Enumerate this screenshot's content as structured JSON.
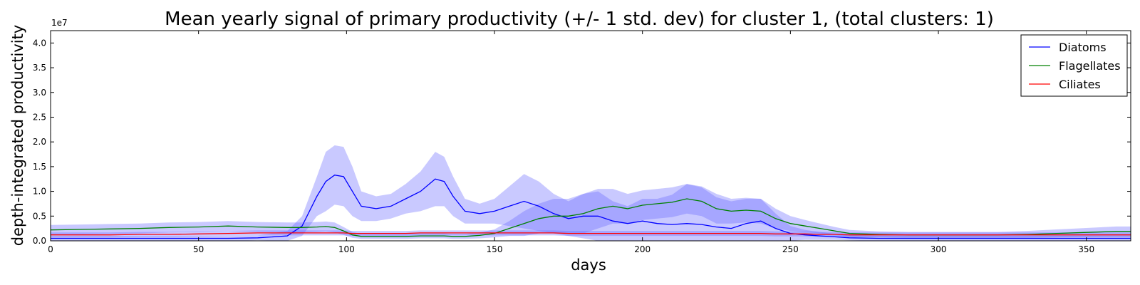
{
  "chart_data": {
    "type": "line",
    "title": "Mean yearly signal of primary productivity (+/- 1 std. dev) for cluster 1, (total clusters: 1)",
    "xlabel": "days",
    "ylabel": "depth-integrated productivity",
    "y_offset_label": "1e7",
    "xlim": [
      0,
      365
    ],
    "ylim": [
      0,
      4.25
    ],
    "xticks": [
      0,
      50,
      100,
      150,
      200,
      250,
      300,
      350
    ],
    "xtick_labels": [
      "0",
      "50",
      "100",
      "150",
      "200",
      "250",
      "300",
      "350"
    ],
    "yticks": [
      0,
      0.5,
      1.0,
      1.5,
      2.0,
      2.5,
      3.0,
      3.5,
      4.0
    ],
    "ytick_labels": [
      "0.0",
      "0.5",
      "1.0",
      "1.5",
      "2.0",
      "2.5",
      "3.0",
      "3.5",
      "4.0"
    ],
    "legend_position": "top-right",
    "x": [
      0,
      10,
      20,
      30,
      40,
      50,
      60,
      70,
      80,
      85,
      90,
      93,
      96,
      99,
      102,
      105,
      110,
      115,
      120,
      125,
      130,
      133,
      136,
      140,
      145,
      150,
      155,
      160,
      165,
      170,
      175,
      180,
      185,
      190,
      195,
      200,
      205,
      210,
      215,
      220,
      225,
      230,
      235,
      240,
      245,
      250,
      255,
      260,
      265,
      270,
      280,
      290,
      300,
      310,
      320,
      330,
      340,
      350,
      360,
      365
    ],
    "series": [
      {
        "name": "Diatoms",
        "color": "#0000ff",
        "band_color": "#6464ff",
        "values": [
          0.05,
          0.05,
          0.05,
          0.05,
          0.05,
          0.05,
          0.05,
          0.06,
          0.1,
          0.3,
          0.9,
          1.2,
          1.33,
          1.3,
          1.0,
          0.7,
          0.65,
          0.7,
          0.85,
          1.0,
          1.25,
          1.2,
          0.9,
          0.6,
          0.55,
          0.6,
          0.7,
          0.8,
          0.7,
          0.55,
          0.45,
          0.5,
          0.5,
          0.4,
          0.35,
          0.4,
          0.35,
          0.33,
          0.35,
          0.33,
          0.28,
          0.25,
          0.35,
          0.4,
          0.25,
          0.15,
          0.12,
          0.1,
          0.08,
          0.06,
          0.05,
          0.05,
          0.05,
          0.05,
          0.05,
          0.05,
          0.05,
          0.05,
          0.05,
          0.05
        ],
        "std": [
          0.05,
          0.05,
          0.05,
          0.05,
          0.05,
          0.05,
          0.05,
          0.05,
          0.1,
          0.2,
          0.4,
          0.6,
          0.6,
          0.6,
          0.5,
          0.3,
          0.25,
          0.25,
          0.3,
          0.4,
          0.55,
          0.5,
          0.4,
          0.25,
          0.2,
          0.25,
          0.4,
          0.55,
          0.5,
          0.4,
          0.35,
          0.45,
          0.5,
          0.4,
          0.35,
          0.45,
          0.5,
          0.6,
          0.8,
          0.75,
          0.6,
          0.55,
          0.5,
          0.45,
          0.3,
          0.15,
          0.1,
          0.08,
          0.06,
          0.05,
          0.05,
          0.05,
          0.05,
          0.05,
          0.05,
          0.05,
          0.05,
          0.05,
          0.05,
          0.05
        ]
      },
      {
        "name": "Flagellates",
        "color": "#008000",
        "band_color": "#6464ff",
        "values": [
          0.22,
          0.23,
          0.24,
          0.25,
          0.27,
          0.28,
          0.3,
          0.28,
          0.27,
          0.27,
          0.28,
          0.29,
          0.27,
          0.2,
          0.12,
          0.09,
          0.09,
          0.09,
          0.09,
          0.1,
          0.1,
          0.1,
          0.09,
          0.09,
          0.11,
          0.15,
          0.25,
          0.35,
          0.45,
          0.5,
          0.5,
          0.55,
          0.65,
          0.7,
          0.65,
          0.72,
          0.75,
          0.78,
          0.85,
          0.8,
          0.65,
          0.6,
          0.62,
          0.6,
          0.45,
          0.35,
          0.3,
          0.25,
          0.2,
          0.15,
          0.13,
          0.12,
          0.12,
          0.12,
          0.12,
          0.13,
          0.15,
          0.17,
          0.19,
          0.19
        ],
        "std": [
          0.1,
          0.1,
          0.1,
          0.1,
          0.1,
          0.1,
          0.1,
          0.1,
          0.1,
          0.1,
          0.1,
          0.1,
          0.1,
          0.08,
          0.06,
          0.05,
          0.05,
          0.05,
          0.05,
          0.05,
          0.05,
          0.05,
          0.05,
          0.05,
          0.06,
          0.08,
          0.15,
          0.25,
          0.3,
          0.35,
          0.35,
          0.4,
          0.4,
          0.35,
          0.3,
          0.3,
          0.3,
          0.3,
          0.3,
          0.3,
          0.3,
          0.25,
          0.25,
          0.25,
          0.2,
          0.15,
          0.12,
          0.1,
          0.08,
          0.07,
          0.06,
          0.06,
          0.06,
          0.06,
          0.06,
          0.07,
          0.08,
          0.09,
          0.1,
          0.1
        ]
      },
      {
        "name": "Ciliates",
        "color": "#ff0000",
        "band_color": "#6464ff",
        "values": [
          0.12,
          0.12,
          0.12,
          0.13,
          0.13,
          0.14,
          0.15,
          0.16,
          0.16,
          0.16,
          0.16,
          0.16,
          0.16,
          0.16,
          0.15,
          0.15,
          0.15,
          0.15,
          0.15,
          0.16,
          0.16,
          0.16,
          0.16,
          0.16,
          0.16,
          0.16,
          0.16,
          0.16,
          0.16,
          0.16,
          0.15,
          0.15,
          0.15,
          0.15,
          0.15,
          0.15,
          0.15,
          0.15,
          0.15,
          0.15,
          0.15,
          0.15,
          0.15,
          0.15,
          0.14,
          0.14,
          0.14,
          0.13,
          0.13,
          0.12,
          0.12,
          0.12,
          0.12,
          0.12,
          0.12,
          0.12,
          0.12,
          0.12,
          0.12,
          0.12
        ],
        "std": [
          0.05,
          0.05,
          0.05,
          0.05,
          0.05,
          0.05,
          0.05,
          0.05,
          0.05,
          0.05,
          0.05,
          0.05,
          0.05,
          0.05,
          0.05,
          0.05,
          0.05,
          0.05,
          0.05,
          0.05,
          0.05,
          0.05,
          0.05,
          0.05,
          0.05,
          0.05,
          0.05,
          0.05,
          0.05,
          0.05,
          0.05,
          0.05,
          0.05,
          0.05,
          0.05,
          0.05,
          0.05,
          0.05,
          0.05,
          0.05,
          0.05,
          0.05,
          0.05,
          0.05,
          0.05,
          0.05,
          0.05,
          0.05,
          0.05,
          0.05,
          0.05,
          0.05,
          0.05,
          0.05,
          0.05,
          0.05,
          0.05,
          0.05,
          0.05,
          0.05
        ]
      }
    ]
  }
}
